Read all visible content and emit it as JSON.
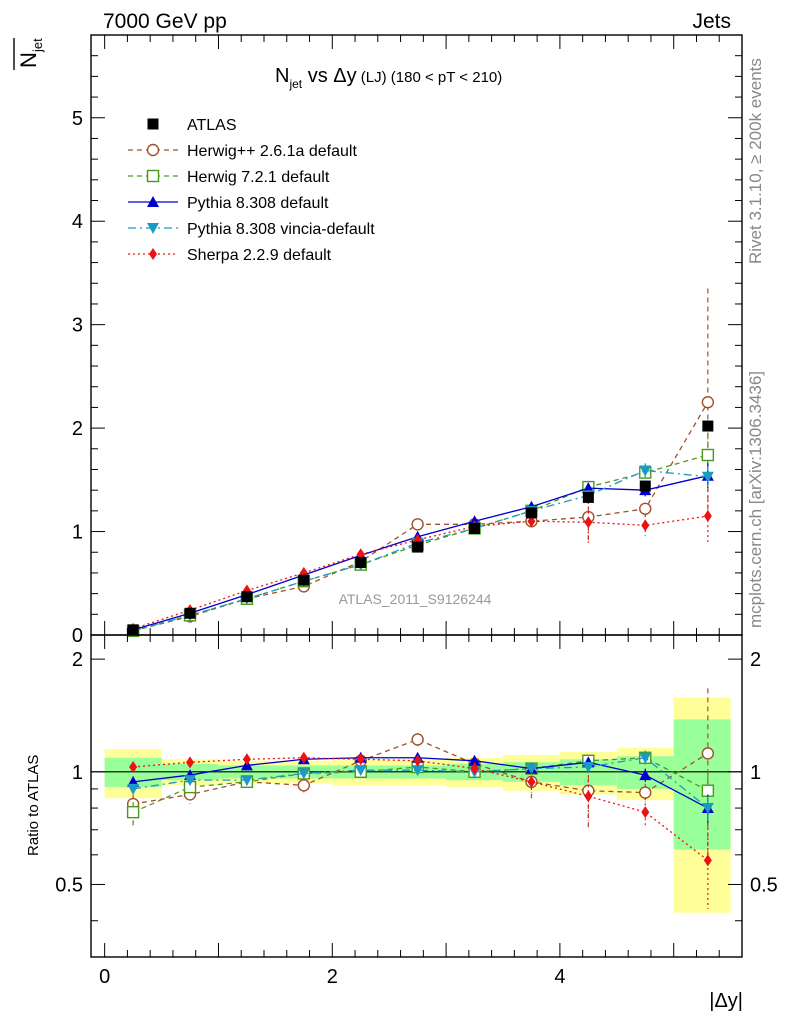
{
  "header": {
    "left": "7000 GeV pp",
    "right": "Jets"
  },
  "side_text": {
    "rivet": "Rivet 3.1.10, ≥ 200k events",
    "mcplots": "mcplots.cern.ch [arXiv:1306.3436]"
  },
  "chart_data": {
    "type": "scatter",
    "title_main": "N",
    "title_sub": "jet",
    "title_vs": " vs Δy",
    "title_lj": " (LJ)",
    "title_range": " (180 < pT < 210)",
    "ylabel_main": "N",
    "ylabel_sub": "jet",
    "ylabel_ratio": "Ratio to ATLAS",
    "xlabel": "|Δy|",
    "watermark": "ATLAS_2011_S9126244",
    "xlim": [
      -0.12,
      5.6
    ],
    "ylim": [
      0,
      5.8
    ],
    "ratio_ylim": [
      0.32,
      2.32
    ],
    "x_ticks": [
      0,
      2,
      4
    ],
    "y_ticks": [
      0,
      1,
      2,
      3,
      4,
      5
    ],
    "ratio_ticks": [
      0.5,
      1,
      2
    ],
    "bin_edges": [
      0,
      0.5,
      1,
      1.5,
      2,
      2.5,
      3,
      3.5,
      4,
      4.5,
      5,
      5.5
    ],
    "x": [
      0.25,
      0.75,
      1.25,
      1.75,
      2.25,
      2.75,
      3.25,
      3.75,
      4.25,
      4.75,
      5.3
    ],
    "data": {
      "name": "ATLAS",
      "values": [
        0.05,
        0.21,
        0.37,
        0.53,
        0.7,
        0.85,
        1.03,
        1.18,
        1.33,
        1.44,
        2.02
      ],
      "ratio_band_yellow": [
        0.15,
        0.08,
        0.07,
        0.07,
        0.08,
        0.08,
        0.09,
        0.11,
        0.13,
        0.16,
        0.58
      ],
      "ratio_band_green": [
        0.09,
        0.05,
        0.04,
        0.04,
        0.04,
        0.04,
        0.05,
        0.06,
        0.08,
        0.1,
        0.38
      ]
    },
    "series": [
      {
        "name": "Herwig++ 2.6.1a default",
        "color": "#a0522d",
        "marker": "circle-open",
        "dash": "5,4",
        "values": [
          0.04,
          0.18,
          0.35,
          0.47,
          0.71,
          1.07,
          1.07,
          1.1,
          1.14,
          1.22,
          2.25
        ],
        "errors": [
          0.003,
          0.01,
          0.01,
          0.02,
          0.03,
          0.04,
          0.05,
          0.06,
          0.26,
          0.05,
          1.1
        ],
        "ratio": [
          0.82,
          0.87,
          0.94,
          0.92,
          1.07,
          1.22,
          1.05,
          0.94,
          0.89,
          0.88,
          1.12
        ],
        "ratio_err": [
          0.1,
          0.05,
          0.03,
          0.04,
          0.04,
          0.05,
          0.05,
          0.09,
          0.19,
          0.05,
          0.55
        ]
      },
      {
        "name": "Herwig 7.2.1 default",
        "color": "#4a9a1a",
        "marker": "square-open",
        "dash": "5,4",
        "values": [
          0.04,
          0.19,
          0.35,
          0.52,
          0.68,
          0.87,
          1.03,
          1.2,
          1.43,
          1.57,
          1.74
        ],
        "errors": [
          0.003,
          0.01,
          0.01,
          0.02,
          0.02,
          0.03,
          0.04,
          0.04,
          0.05,
          0.08,
          0.2
        ],
        "ratio": [
          0.78,
          0.91,
          0.94,
          0.99,
          1.0,
          1.03,
          1.0,
          1.02,
          1.07,
          1.09,
          0.89
        ],
        "ratio_err": [
          0.05,
          0.03,
          0.03,
          0.03,
          0.03,
          0.03,
          0.04,
          0.03,
          0.04,
          0.05,
          0.1
        ]
      },
      {
        "name": "Pythia 8.308 default",
        "color": "#0000cc",
        "marker": "triangle-up",
        "dash": "",
        "values": [
          0.05,
          0.21,
          0.39,
          0.58,
          0.77,
          0.95,
          1.1,
          1.24,
          1.42,
          1.4,
          1.54
        ],
        "errors": [
          0.003,
          0.01,
          0.01,
          0.02,
          0.02,
          0.03,
          0.03,
          0.04,
          0.05,
          0.06,
          0.12
        ],
        "ratio": [
          0.94,
          0.98,
          1.04,
          1.08,
          1.09,
          1.09,
          1.07,
          1.02,
          1.06,
          0.98,
          0.8
        ],
        "ratio_err": [
          0.03,
          0.02,
          0.02,
          0.02,
          0.02,
          0.02,
          0.03,
          0.03,
          0.03,
          0.04,
          0.07
        ]
      },
      {
        "name": "Pythia 8.308 vincia-default",
        "color": "#1a9bc4",
        "marker": "triangle-down",
        "dash": "8,4,2,4",
        "values": [
          0.04,
          0.19,
          0.35,
          0.52,
          0.68,
          0.89,
          1.03,
          1.2,
          1.35,
          1.59,
          1.53
        ],
        "errors": [
          0.003,
          0.01,
          0.01,
          0.02,
          0.02,
          0.03,
          0.03,
          0.04,
          0.05,
          0.07,
          0.1
        ],
        "ratio": [
          0.9,
          0.95,
          0.95,
          0.99,
          1.01,
          1.01,
          1.0,
          1.02,
          1.03,
          1.09,
          0.8
        ],
        "ratio_err": [
          0.03,
          0.02,
          0.02,
          0.02,
          0.02,
          0.02,
          0.03,
          0.03,
          0.03,
          0.04,
          0.06
        ]
      },
      {
        "name": "Sherpa 2.2.9 default",
        "color": "#ee1111",
        "marker": "diamond",
        "dash": "2,3",
        "values": [
          0.06,
          0.24,
          0.43,
          0.6,
          0.78,
          0.92,
          1.05,
          1.1,
          1.09,
          1.06,
          1.15
        ],
        "errors": [
          0.004,
          0.01,
          0.01,
          0.02,
          0.02,
          0.03,
          0.05,
          0.07,
          0.2,
          0.1,
          0.25
        ],
        "ratio": [
          1.03,
          1.06,
          1.08,
          1.09,
          1.08,
          1.07,
          1.02,
          0.94,
          0.86,
          0.78,
          0.58
        ],
        "ratio_err": [
          0.03,
          0.02,
          0.02,
          0.02,
          0.02,
          0.03,
          0.04,
          0.06,
          0.12,
          0.07,
          0.15
        ]
      }
    ]
  }
}
